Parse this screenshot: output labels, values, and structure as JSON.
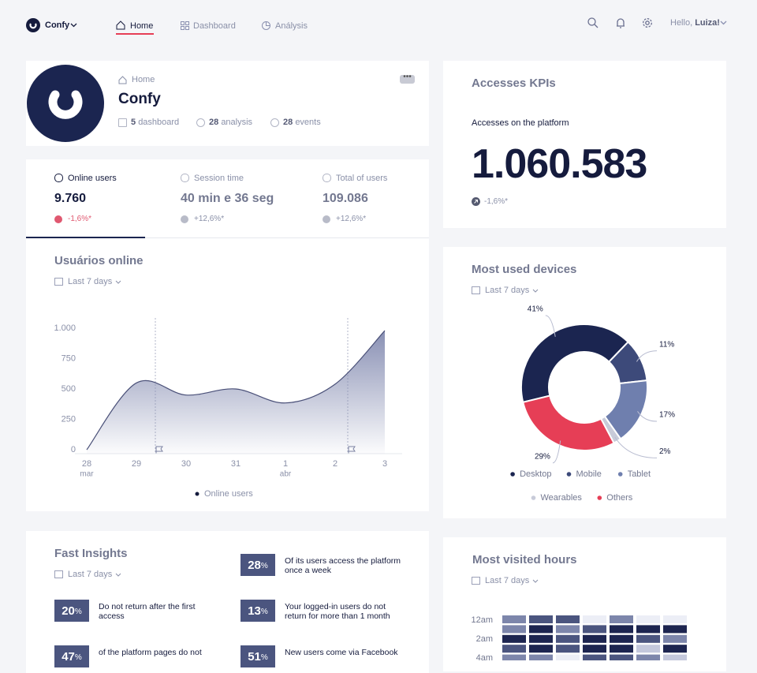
{
  "nav": {
    "brand": "Confy",
    "items": [
      "Home",
      "Dashboard",
      "Análysis"
    ],
    "greeting": "Hello,",
    "user": "Luiza!"
  },
  "profile": {
    "breadcrumb": "Home",
    "name": "Confy",
    "stats": [
      {
        "count": 5,
        "label": "dashboard"
      },
      {
        "count": 28,
        "label": "analysis"
      },
      {
        "count": 28,
        "label": "events"
      }
    ]
  },
  "kpi": {
    "title": "Accesses KPIs",
    "label": "Accesses on the platform",
    "value": "1.060.583",
    "change": "-1,6%*"
  },
  "stats": [
    {
      "label": "Online users",
      "value": "9.760",
      "change": "-1,6%*"
    },
    {
      "label": "Session time",
      "value": "40 min e 36 seg",
      "change": "+12,6%*"
    },
    {
      "label": "Total of users",
      "value": "109.086",
      "change": "+12,6%*"
    }
  ],
  "online_chart": {
    "type": "area",
    "title": "Usuários online",
    "period": "Last 7 days",
    "categories": [
      "28",
      "29",
      "30",
      "31",
      "1",
      "2",
      "3"
    ],
    "category_sublabels": [
      "mar",
      null,
      null,
      null,
      "abr",
      null,
      null
    ],
    "values": [
      0,
      550,
      450,
      500,
      385,
      540,
      980
    ],
    "ylim": [
      0,
      1000
    ],
    "yticks": [
      0,
      250,
      500,
      750,
      {
        "value": 1000,
        "label": "1.000"
      }
    ],
    "color": "#4a5078",
    "legend": "Online users"
  },
  "devices": {
    "type": "pie",
    "title": "Most used devices",
    "period": "Last 7 days",
    "categories": [
      "Desktop",
      "Mobile",
      "Tablet",
      "Wearables",
      "Others"
    ],
    "values": [
      41,
      11,
      17,
      2,
      29
    ],
    "value_labels": [
      "41%",
      "11%",
      "17%",
      "2%",
      "29%"
    ],
    "colors": [
      "#1b2550",
      "#3d4a7a",
      "#6f7fae",
      "#c8cbd9",
      "#e63e56"
    ]
  },
  "insights": {
    "title": "Fast Insights",
    "period": "Last 7 days",
    "unit": "%",
    "items": [
      {
        "value": 28,
        "text": "Of its users access the platform once a week"
      },
      {
        "value": 20,
        "text": "Do not return after the first access"
      },
      {
        "value": 13,
        "text": "Your logged-in users do not return for more than 1 month"
      },
      {
        "value": 47,
        "text": "of the platform pages do not"
      },
      {
        "value": 51,
        "text": "New users come via Facebook"
      }
    ]
  },
  "hours": {
    "type": "heatmap",
    "title": "Most visited hours",
    "period": "Last 7 days",
    "row_labels": [
      "12am",
      "2am",
      "4am"
    ],
    "values": [
      [
        2,
        3,
        3,
        0,
        2,
        0,
        0
      ],
      [
        2,
        4,
        2,
        3,
        4,
        4,
        4
      ],
      [
        4,
        4,
        3,
        4,
        4,
        3,
        2
      ],
      [
        3,
        4,
        3,
        4,
        4,
        1,
        4
      ],
      [
        2,
        2,
        0,
        3,
        3,
        2,
        1
      ]
    ],
    "scale_colors": [
      "#eceef6",
      "#c4c8dc",
      "#7d86ab",
      "#4b557f",
      "#1d2550"
    ]
  }
}
